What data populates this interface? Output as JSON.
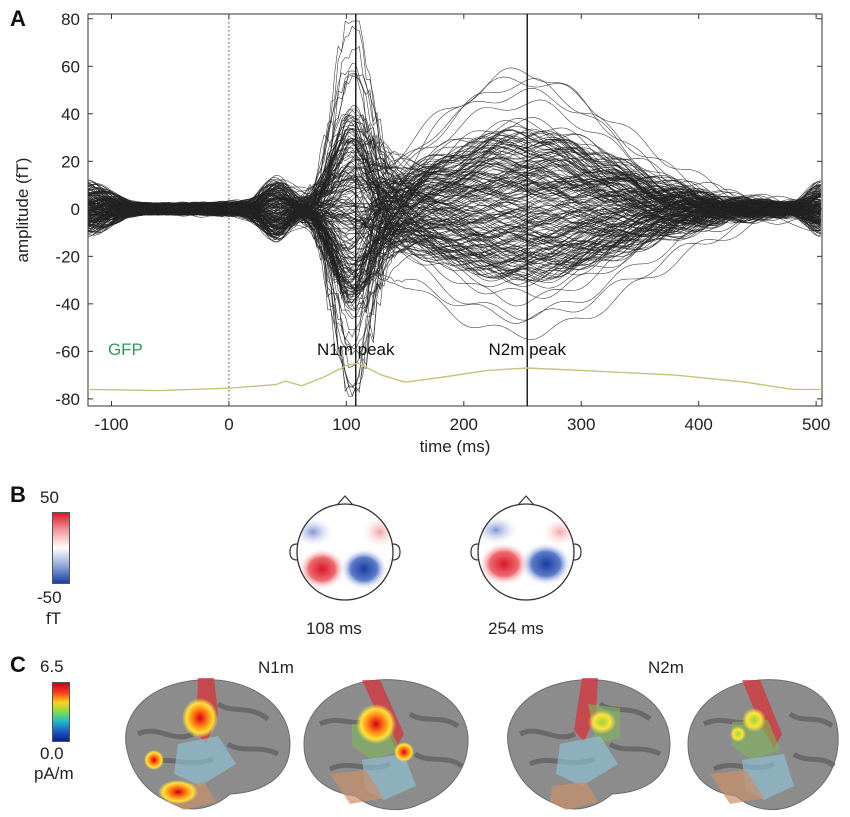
{
  "panels": {
    "a": "A",
    "b": "B",
    "c": "C"
  },
  "chart_data": {
    "type": "line",
    "xlabel": "time (ms)",
    "ylabel": "amplitude (fT)",
    "xlim": [
      -120,
      505
    ],
    "ylim": [
      -83,
      82
    ],
    "x_ticks": [
      -100,
      0,
      100,
      200,
      300,
      400,
      500
    ],
    "y_ticks": [
      -80,
      -60,
      -40,
      -20,
      0,
      20,
      40,
      60,
      80
    ],
    "stimulus_onset": 0,
    "markers": [
      {
        "label": "N1m peak",
        "x": 108
      },
      {
        "label": "N2m peak",
        "x": 254
      }
    ],
    "gfp": {
      "label": "GFP",
      "color": "#2e9a57",
      "trace_color": "#c8c27a",
      "points": [
        [
          -120,
          -76
        ],
        [
          -60,
          -76.5
        ],
        [
          0,
          -75.5
        ],
        [
          40,
          -74
        ],
        [
          48,
          -72.5
        ],
        [
          62,
          -74.5
        ],
        [
          80,
          -71
        ],
        [
          100,
          -66
        ],
        [
          110,
          -65
        ],
        [
          130,
          -70
        ],
        [
          150,
          -73
        ],
        [
          180,
          -71
        ],
        [
          220,
          -68
        ],
        [
          254,
          -67
        ],
        [
          300,
          -68
        ],
        [
          380,
          -70
        ],
        [
          440,
          -73
        ],
        [
          480,
          -76
        ],
        [
          505,
          -76
        ]
      ]
    },
    "trace_count": 200,
    "trace_color": "#222222"
  },
  "panel_b": {
    "colorbar": {
      "max": "50",
      "min": "-50",
      "unit": "fT"
    },
    "topomaps": [
      {
        "label": "108 ms"
      },
      {
        "label": "254 ms"
      }
    ]
  },
  "panel_c": {
    "colorbar": {
      "max": "6.5",
      "min": "0.0",
      "unit": "pA/m"
    },
    "groups": [
      {
        "title": "N1m"
      },
      {
        "title": "N2m"
      }
    ]
  }
}
